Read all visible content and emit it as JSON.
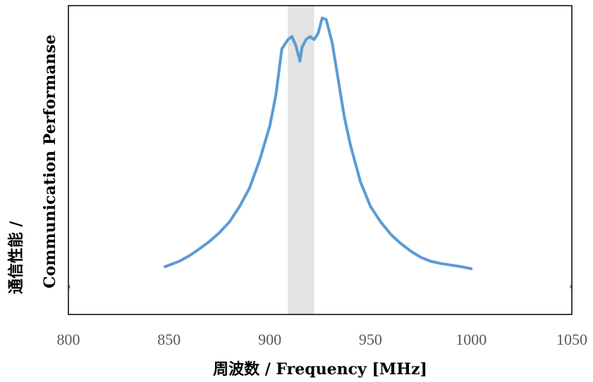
{
  "chart_data": {
    "type": "line",
    "title": "",
    "xlabel": "周波数 / Frequency [MHz]",
    "ylabel": "通信性能 / Communication Performanse",
    "xlim": [
      800,
      1050
    ],
    "ylim": [
      0,
      1.0
    ],
    "xticks": [
      "800",
      "850",
      "900",
      "950",
      "1000",
      "1050"
    ],
    "yticks_shown": false,
    "grid": false,
    "legend": "none",
    "colors": {
      "line": "#5B9BD5",
      "band": "#E3E3E3",
      "frame": "#000000"
    },
    "highlight_band": {
      "x_start": 909,
      "x_end": 922
    },
    "series": [
      {
        "x": [
          848,
          855,
          860,
          865,
          870,
          875,
          880,
          885,
          890,
          895,
          900,
          903,
          906,
          909,
          911,
          913,
          915,
          916,
          918,
          920,
          922,
          924,
          926,
          928,
          931,
          934,
          937,
          940,
          945,
          950,
          955,
          960,
          965,
          970,
          975,
          980,
          985,
          990,
          995,
          1000
        ],
        "y": [
          0.155,
          0.172,
          0.19,
          0.212,
          0.236,
          0.265,
          0.3,
          0.35,
          0.41,
          0.5,
          0.61,
          0.71,
          0.86,
          0.89,
          0.9,
          0.87,
          0.82,
          0.865,
          0.89,
          0.9,
          0.89,
          0.91,
          0.96,
          0.955,
          0.88,
          0.76,
          0.64,
          0.55,
          0.43,
          0.35,
          0.3,
          0.26,
          0.23,
          0.205,
          0.185,
          0.172,
          0.165,
          0.16,
          0.155,
          0.148
        ]
      }
    ]
  }
}
